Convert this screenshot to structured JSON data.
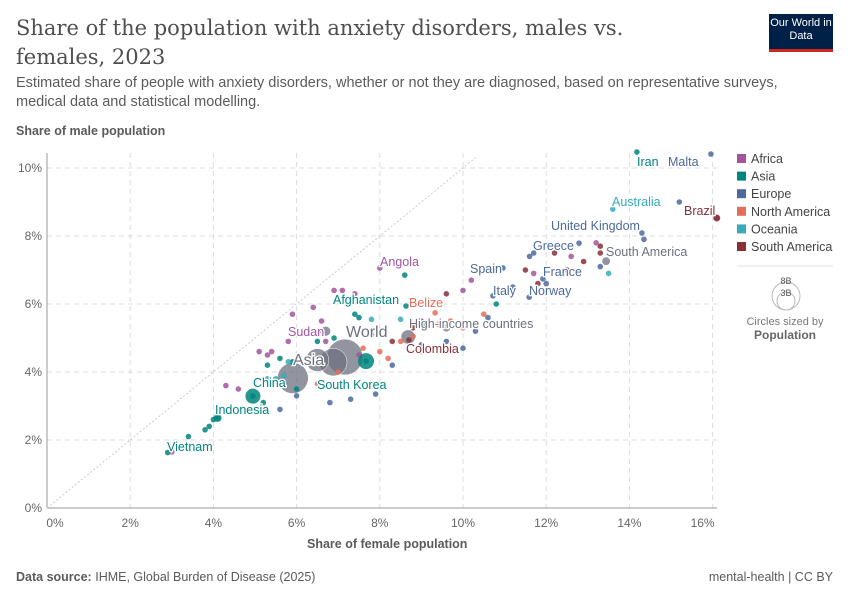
{
  "header": {
    "title": "Share of the population with anxiety disorders, males vs. females, 2023",
    "subtitle": "Estimated share of people with anxiety disorders, whether or not they are diagnosed, based on representative surveys, medical data and statistical modelling.",
    "logo": "Our World in Data"
  },
  "footer": {
    "source_label": "Data source:",
    "source": "IHME, Global Burden of Disease (2025)",
    "license": "mental-health | CC BY"
  },
  "chart_data": {
    "type": "scatter",
    "xlabel": "Share of female population",
    "ylabel": "Share of male population",
    "xlim": [
      0,
      16
    ],
    "ylim": [
      0,
      10.4
    ],
    "xticks": [
      "0%",
      "2%",
      "4%",
      "6%",
      "8%",
      "10%",
      "12%",
      "14%",
      "16%"
    ],
    "yticks": [
      "0%",
      "2%",
      "4%",
      "6%",
      "8%",
      "10%"
    ],
    "grid": true,
    "legend_position": "right",
    "colors": {
      "Africa": "#a2559c",
      "Asia": "#00847e",
      "Europe": "#4c6a9c",
      "North America": "#e56e5a",
      "Oceania": "#38aaba",
      "South America": "#883039",
      "aggregate": "#6d7080"
    },
    "legend": [
      "Africa",
      "Asia",
      "Europe",
      "North America",
      "Oceania",
      "South America"
    ],
    "size_legend": {
      "big": "8B",
      "small": "3B",
      "caption": "Circles sized by",
      "variable": "Population"
    },
    "series": [
      {
        "name": "Africa",
        "points": [
          [
            3.0,
            1.65
          ],
          [
            4.3,
            3.6
          ],
          [
            4.6,
            3.5
          ],
          [
            5.1,
            4.6
          ],
          [
            5.4,
            4.6
          ],
          [
            5.3,
            4.5
          ],
          [
            5.9,
            5.7
          ],
          [
            6.4,
            5.9
          ],
          [
            6.9,
            6.4
          ],
          [
            7.1,
            6.4
          ],
          [
            7.4,
            6.3
          ],
          [
            6.7,
            4.9
          ],
          [
            7.5,
            4.5
          ],
          [
            7.8,
            5.1
          ],
          [
            8.0,
            7.06
          ],
          [
            10.2,
            6.7
          ],
          [
            10.0,
            6.4
          ],
          [
            11.7,
            6.9
          ],
          [
            12.6,
            7.4
          ],
          [
            13.2,
            7.8
          ],
          [
            9.0,
            5.5
          ],
          [
            6.6,
            5.5
          ],
          [
            5.8,
            4.9
          ],
          [
            6.61,
            5.21
          ]
        ]
      },
      {
        "name": "Asia",
        "points": [
          [
            2.9,
            1.63
          ],
          [
            3.4,
            2.1
          ],
          [
            3.8,
            2.3
          ],
          [
            3.9,
            2.4
          ],
          [
            4.0,
            2.6
          ],
          [
            4.1,
            2.65
          ],
          [
            4.95,
            3.29
          ],
          [
            5.3,
            4.2
          ],
          [
            5.6,
            4.4
          ],
          [
            5.9,
            4.3
          ],
          [
            7.67,
            4.32
          ],
          [
            6.9,
            5.0
          ],
          [
            7.4,
            5.7
          ],
          [
            7.5,
            5.6
          ],
          [
            8.63,
            5.94
          ],
          [
            8.6,
            6.85
          ],
          [
            9.1,
            5.4
          ],
          [
            10.8,
            6.0
          ],
          [
            14.18,
            10.47
          ],
          [
            6.0,
            3.5
          ],
          [
            5.2,
            3.1
          ],
          [
            6.5,
            4.9
          ]
        ]
      },
      {
        "name": "Europe",
        "points": [
          [
            5.6,
            2.9
          ],
          [
            6.0,
            3.3
          ],
          [
            6.8,
            3.1
          ],
          [
            7.3,
            3.2
          ],
          [
            7.9,
            3.35
          ],
          [
            8.3,
            4.2
          ],
          [
            9.0,
            4.8
          ],
          [
            9.6,
            4.9
          ],
          [
            10.0,
            4.7
          ],
          [
            10.3,
            5.2
          ],
          [
            10.6,
            5.6
          ],
          [
            11.2,
            6.5
          ],
          [
            10.96,
            7.06
          ],
          [
            11.6,
            7.4
          ],
          [
            11.7,
            7.5
          ],
          [
            12.79,
            7.79
          ],
          [
            13.3,
            7.1
          ],
          [
            14.3,
            8.09
          ],
          [
            14.35,
            7.9
          ],
          [
            15.96,
            10.41
          ],
          [
            15.2,
            9.0
          ],
          [
            11.59,
            6.2
          ],
          [
            10.72,
            6.24
          ],
          [
            11.92,
            6.74
          ],
          [
            12.0,
            6.6
          ]
        ]
      },
      {
        "name": "North America",
        "points": [
          [
            6.5,
            3.65
          ],
          [
            7.0,
            4.0
          ],
          [
            8.2,
            4.4
          ],
          [
            8.5,
            4.9
          ],
          [
            8.8,
            5.05
          ],
          [
            8.9,
            5.5
          ],
          [
            9.33,
            5.74
          ],
          [
            9.4,
            5.4
          ],
          [
            9.7,
            5.5
          ],
          [
            10.0,
            5.3
          ],
          [
            10.5,
            5.7
          ],
          [
            8.0,
            4.6
          ],
          [
            7.6,
            4.7
          ],
          [
            9.0,
            4.6
          ]
        ]
      },
      {
        "name": "Oceania",
        "points": [
          [
            5.3,
            3.8
          ],
          [
            5.5,
            3.8
          ],
          [
            5.7,
            3.9
          ],
          [
            5.6,
            3.7
          ],
          [
            7.8,
            5.55
          ],
          [
            8.5,
            5.55
          ],
          [
            13.6,
            8.79
          ],
          [
            13.5,
            6.9
          ],
          [
            5.8,
            4.3
          ]
        ]
      },
      {
        "name": "South America",
        "points": [
          [
            16.1,
            8.53
          ],
          [
            12.2,
            7.5
          ],
          [
            12.5,
            7.0
          ],
          [
            12.9,
            7.25
          ],
          [
            13.3,
            7.5
          ],
          [
            13.3,
            7.7
          ],
          [
            11.5,
            7.0
          ],
          [
            8.7,
            4.94
          ],
          [
            8.3,
            4.9
          ],
          [
            8.8,
            5.3
          ],
          [
            9.6,
            6.3
          ],
          [
            11.8,
            6.6
          ]
        ]
      }
    ],
    "aggregates": [
      [
        7.16,
        4.44,
        8.1
      ],
      [
        6.88,
        4.29,
        4.8
      ],
      [
        6.5,
        4.35,
        3.3
      ],
      [
        5.91,
        3.82,
        6.0
      ],
      [
        8.68,
        5.03,
        1.3
      ],
      [
        13.44,
        7.26,
        0.44
      ],
      [
        6.7,
        5.2,
        0.6
      ],
      [
        9.6,
        5.3,
        0.4
      ]
    ],
    "labels": [
      {
        "text": "Iran",
        "region": "Asia"
      },
      {
        "text": "Malta",
        "region": "Europe"
      },
      {
        "text": "Australia",
        "region": "Oceania"
      },
      {
        "text": "Brazil",
        "region": "South America"
      },
      {
        "text": "United Kingdom",
        "region": "Europe"
      },
      {
        "text": "Greece",
        "region": "Europe"
      },
      {
        "text": "South America",
        "region": "aggregate"
      },
      {
        "text": "Spain",
        "region": "Europe"
      },
      {
        "text": "France",
        "region": "Europe"
      },
      {
        "text": "Italy",
        "region": "Europe"
      },
      {
        "text": "Norway",
        "region": "Europe"
      },
      {
        "text": "Angola",
        "region": "Africa"
      },
      {
        "text": "Afghanistan",
        "region": "Asia"
      },
      {
        "text": "Belize",
        "region": "North America"
      },
      {
        "text": "High-income countries",
        "region": "aggregate"
      },
      {
        "text": "Sudan",
        "region": "Africa"
      },
      {
        "text": "World",
        "region": "aggregate"
      },
      {
        "text": "Colombia",
        "region": "South America"
      },
      {
        "text": "Asia",
        "region": "aggregate"
      },
      {
        "text": "South Korea",
        "region": "Asia"
      },
      {
        "text": "China",
        "region": "Asia"
      },
      {
        "text": "Indonesia",
        "region": "Asia"
      },
      {
        "text": "Vietnam",
        "region": "Asia"
      }
    ]
  }
}
